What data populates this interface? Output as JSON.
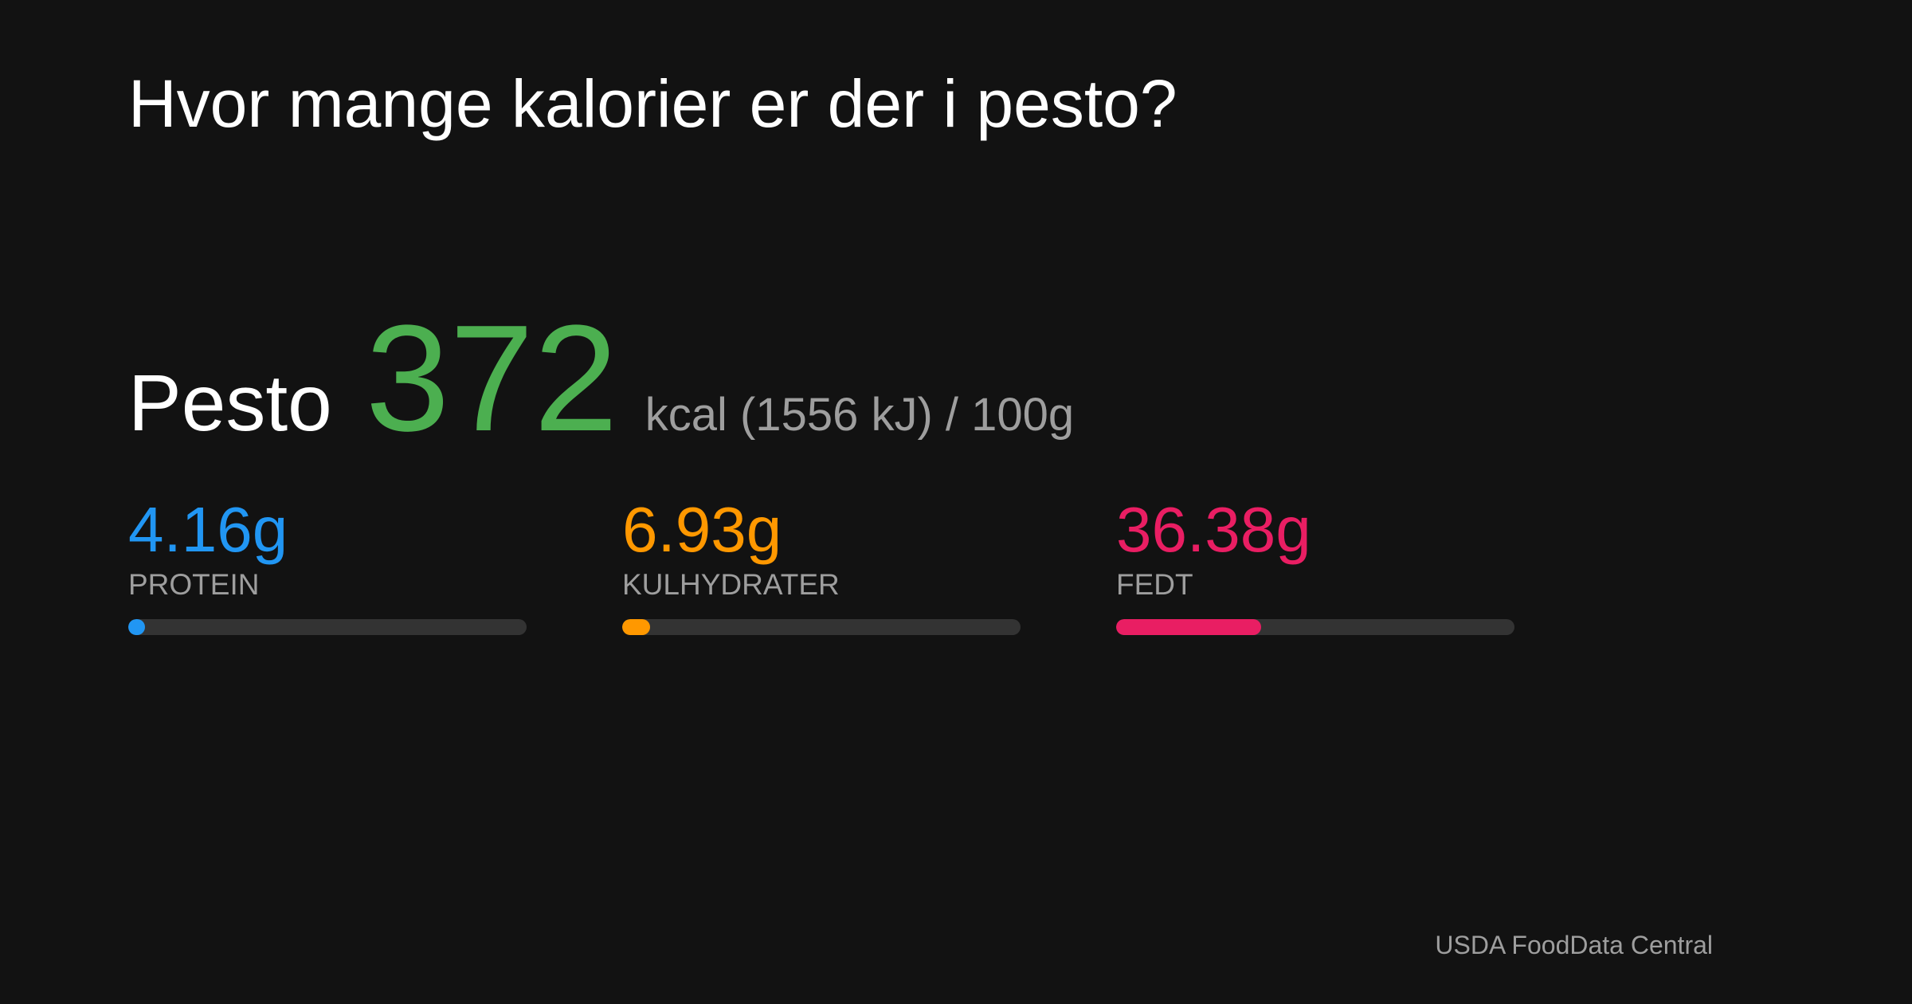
{
  "header": {
    "title": "Hvor mange kalorier er der i pesto?"
  },
  "food": {
    "name": "Pesto",
    "calories": 372,
    "calories_color": "#4caf50",
    "unit_text": "kcal (1556 kJ) / 100g"
  },
  "macros": [
    {
      "value": 4.16,
      "value_label": "4.16g",
      "name": "PROTEIN",
      "color": "#2196f3"
    },
    {
      "value": 6.93,
      "value_label": "6.93g",
      "name": "KULHYDRATER",
      "color": "#ff9800"
    },
    {
      "value": 36.38,
      "value_label": "36.38g",
      "name": "FEDT",
      "color": "#e91e63"
    }
  ],
  "footer": {
    "source": "USDA FoodData Central"
  }
}
